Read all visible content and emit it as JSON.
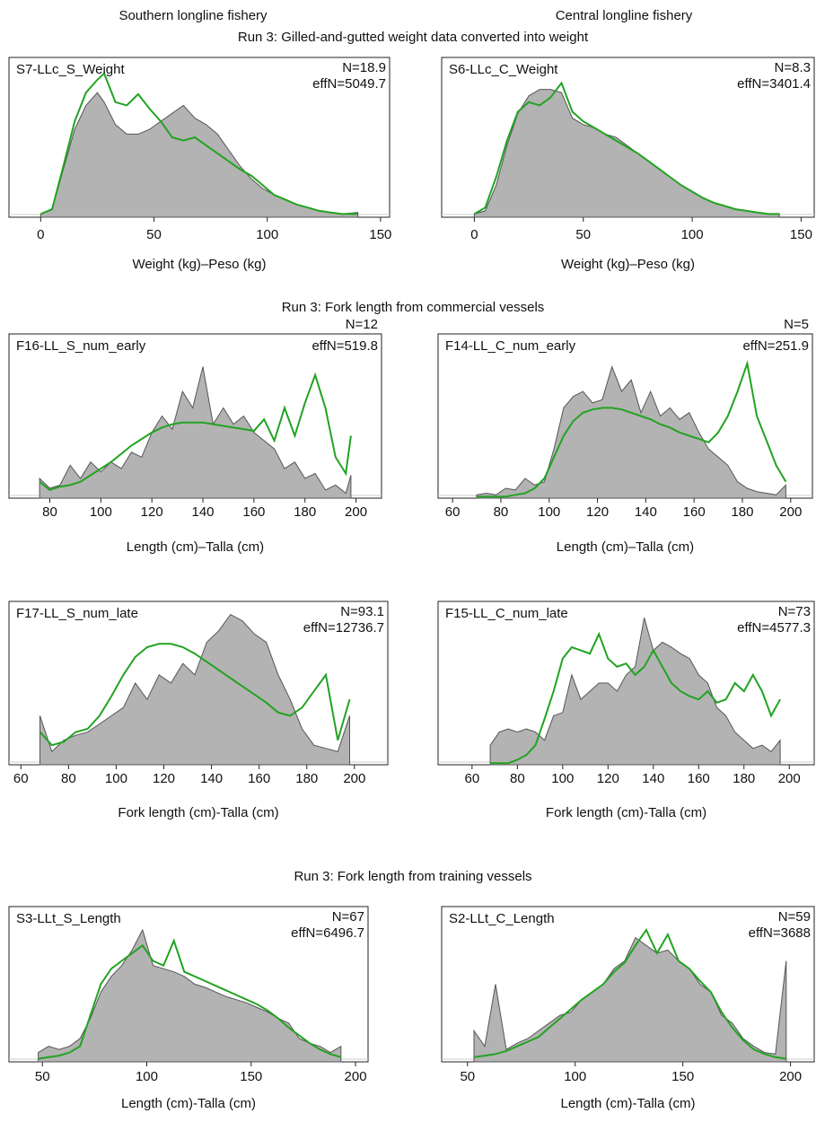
{
  "column_titles": [
    "Southern longline fishery",
    "Central longline fishery"
  ],
  "section_titles": [
    "Run 3: Gilled-and-gutted weight data converted into weight",
    "Run 3: Fork length from commercial vessels",
    "Run 3: Fork length from training vessels"
  ],
  "chart_data": [
    {
      "type": "area",
      "label": "S7-LLc_S_Weight",
      "n_label": "N=18.9",
      "effn_label": "effN=5049.7",
      "xlabel": "Weight (kg)–Peso (kg)",
      "xlim": [
        -14,
        154
      ],
      "xticks": [
        0,
        50,
        100,
        150
      ],
      "ylim": [
        0,
        1
      ],
      "x": [
        0,
        5,
        10,
        15,
        20,
        25,
        28,
        33,
        38,
        43,
        48,
        53,
        58,
        63,
        68,
        73,
        78,
        83,
        88,
        93,
        98,
        103,
        108,
        113,
        118,
        123,
        128,
        133,
        140
      ],
      "series": [
        {
          "color": "#b3b3b3",
          "fill": true,
          "values": [
            0.02,
            0.05,
            0.3,
            0.55,
            0.7,
            0.78,
            0.72,
            0.58,
            0.52,
            0.52,
            0.55,
            0.6,
            0.65,
            0.7,
            0.62,
            0.58,
            0.52,
            0.42,
            0.32,
            0.24,
            0.18,
            0.14,
            0.11,
            0.08,
            0.06,
            0.04,
            0.03,
            0.02,
            0.03
          ]
        },
        {
          "color": "#22a322",
          "fill": false,
          "values": [
            0.02,
            0.05,
            0.32,
            0.6,
            0.78,
            0.86,
            0.9,
            0.72,
            0.7,
            0.77,
            0.68,
            0.6,
            0.5,
            0.48,
            0.5,
            0.45,
            0.4,
            0.35,
            0.3,
            0.26,
            0.2,
            0.14,
            0.11,
            0.08,
            0.06,
            0.04,
            0.03,
            0.02,
            0.02
          ]
        }
      ]
    },
    {
      "type": "area",
      "label": "S6-LLc_C_Weight",
      "n_label": "N=8.3",
      "effn_label": "effN=3401.4",
      "xlabel": "Weight (kg)–Peso (kg)",
      "xlim": [
        -15,
        156
      ],
      "xticks": [
        0,
        50,
        100,
        150
      ],
      "ylim": [
        0,
        1
      ],
      "x": [
        0,
        5,
        10,
        15,
        20,
        25,
        30,
        35,
        40,
        45,
        50,
        55,
        60,
        65,
        70,
        75,
        80,
        85,
        90,
        95,
        100,
        105,
        110,
        115,
        120,
        125,
        130,
        135,
        140
      ],
      "series": [
        {
          "color": "#b3b3b3",
          "fill": true,
          "values": [
            0.02,
            0.04,
            0.2,
            0.45,
            0.65,
            0.76,
            0.8,
            0.8,
            0.78,
            0.62,
            0.58,
            0.56,
            0.52,
            0.5,
            0.45,
            0.4,
            0.35,
            0.3,
            0.25,
            0.2,
            0.16,
            0.12,
            0.09,
            0.07,
            0.05,
            0.04,
            0.03,
            0.02,
            0.02
          ]
        },
        {
          "color": "#22a322",
          "fill": false,
          "values": [
            0.02,
            0.06,
            0.25,
            0.48,
            0.66,
            0.72,
            0.7,
            0.75,
            0.84,
            0.66,
            0.6,
            0.56,
            0.52,
            0.48,
            0.44,
            0.4,
            0.35,
            0.3,
            0.25,
            0.2,
            0.16,
            0.12,
            0.09,
            0.07,
            0.05,
            0.04,
            0.03,
            0.02,
            0.02
          ]
        }
      ]
    },
    {
      "type": "area",
      "label": "F16-LL_S_num_early",
      "n_label": "N=12",
      "effn_label": "effN=519.8",
      "xlabel": "Length (cm)–Talla (cm)",
      "xlim": [
        64,
        210
      ],
      "xticks": [
        80,
        100,
        120,
        140,
        160,
        180,
        200
      ],
      "ylim": [
        0,
        1
      ],
      "x": [
        76,
        80,
        84,
        88,
        92,
        96,
        100,
        104,
        108,
        112,
        116,
        120,
        124,
        128,
        132,
        136,
        140,
        144,
        148,
        152,
        156,
        160,
        164,
        168,
        172,
        176,
        180,
        184,
        188,
        192,
        196,
        198
      ],
      "series": [
        {
          "color": "#b3b3b3",
          "fill": true,
          "values": [
            0.12,
            0.06,
            0.08,
            0.2,
            0.12,
            0.22,
            0.16,
            0.22,
            0.18,
            0.28,
            0.25,
            0.4,
            0.5,
            0.42,
            0.65,
            0.55,
            0.8,
            0.45,
            0.55,
            0.45,
            0.5,
            0.4,
            0.35,
            0.3,
            0.18,
            0.22,
            0.12,
            0.15,
            0.05,
            0.08,
            0.03,
            0.14
          ]
        },
        {
          "color": "#22a322",
          "fill": false,
          "values": [
            0.1,
            0.05,
            0.07,
            0.08,
            0.1,
            0.14,
            0.18,
            0.22,
            0.27,
            0.32,
            0.36,
            0.4,
            0.43,
            0.45,
            0.46,
            0.46,
            0.46,
            0.45,
            0.44,
            0.43,
            0.42,
            0.41,
            0.48,
            0.35,
            0.55,
            0.38,
            0.58,
            0.75,
            0.55,
            0.25,
            0.15,
            0.38
          ]
        }
      ]
    },
    {
      "type": "area",
      "label": "F14-LL_C_num_early",
      "n_label": "N=5",
      "effn_label": "effN=251.9",
      "xlabel": "Length (cm)–Talla (cm)",
      "xlim": [
        54,
        209
      ],
      "xticks": [
        60,
        80,
        100,
        120,
        140,
        160,
        180,
        200
      ],
      "ylim": [
        0,
        1
      ],
      "x": [
        70,
        74,
        78,
        82,
        86,
        90,
        94,
        98,
        102,
        106,
        110,
        114,
        118,
        122,
        126,
        130,
        134,
        138,
        142,
        146,
        150,
        154,
        158,
        162,
        166,
        170,
        174,
        178,
        182,
        186,
        190,
        194,
        198
      ],
      "series": [
        {
          "color": "#b3b3b3",
          "fill": true,
          "values": [
            0.02,
            0.03,
            0.02,
            0.06,
            0.05,
            0.12,
            0.08,
            0.1,
            0.3,
            0.55,
            0.62,
            0.65,
            0.58,
            0.6,
            0.8,
            0.65,
            0.72,
            0.52,
            0.65,
            0.5,
            0.55,
            0.48,
            0.52,
            0.4,
            0.3,
            0.25,
            0.2,
            0.1,
            0.06,
            0.04,
            0.03,
            0.02,
            0.08
          ]
        },
        {
          "color": "#22a322",
          "fill": false,
          "values": [
            0.01,
            0.01,
            0.01,
            0.01,
            0.02,
            0.03,
            0.06,
            0.12,
            0.25,
            0.38,
            0.47,
            0.52,
            0.54,
            0.55,
            0.55,
            0.54,
            0.52,
            0.5,
            0.48,
            0.45,
            0.43,
            0.4,
            0.38,
            0.36,
            0.34,
            0.4,
            0.5,
            0.65,
            0.82,
            0.5,
            0.35,
            0.2,
            0.1
          ]
        }
      ]
    },
    {
      "type": "area",
      "label": "F17-LL_S_num_late",
      "n_label": "N=93.1",
      "effn_label": "effN=12736.7",
      "xlabel": "Fork length (cm)-Talla (cm)",
      "xlim": [
        55,
        214
      ],
      "xticks": [
        60,
        80,
        100,
        120,
        140,
        160,
        180,
        200
      ],
      "ylim": [
        0,
        1
      ],
      "x": [
        68,
        73,
        78,
        83,
        88,
        93,
        98,
        103,
        108,
        113,
        118,
        123,
        128,
        133,
        138,
        143,
        148,
        153,
        158,
        163,
        168,
        173,
        178,
        183,
        188,
        193,
        198
      ],
      "series": [
        {
          "color": "#b3b3b3",
          "fill": true,
          "values": [
            0.3,
            0.08,
            0.15,
            0.18,
            0.2,
            0.25,
            0.3,
            0.35,
            0.5,
            0.4,
            0.55,
            0.5,
            0.62,
            0.55,
            0.75,
            0.82,
            0.92,
            0.88,
            0.8,
            0.75,
            0.55,
            0.4,
            0.22,
            0.12,
            0.1,
            0.08,
            0.3
          ]
        },
        {
          "color": "#22a322",
          "fill": false,
          "values": [
            0.2,
            0.12,
            0.14,
            0.2,
            0.22,
            0.3,
            0.42,
            0.55,
            0.66,
            0.72,
            0.74,
            0.74,
            0.72,
            0.68,
            0.63,
            0.58,
            0.53,
            0.48,
            0.43,
            0.38,
            0.32,
            0.3,
            0.35,
            0.45,
            0.55,
            0.15,
            0.4
          ]
        }
      ]
    },
    {
      "type": "area",
      "label": "F15-LL_C_num_late",
      "n_label": "N=73",
      "effn_label": "effN=4577.3",
      "xlabel": "Fork length (cm)-Talla (cm)",
      "xlim": [
        45,
        211
      ],
      "xticks": [
        60,
        80,
        100,
        120,
        140,
        160,
        180,
        200
      ],
      "ylim": [
        0,
        1
      ],
      "x": [
        68,
        72,
        76,
        80,
        84,
        88,
        92,
        96,
        100,
        104,
        108,
        112,
        116,
        120,
        124,
        128,
        132,
        136,
        140,
        144,
        148,
        152,
        156,
        160,
        164,
        168,
        172,
        176,
        180,
        184,
        188,
        192,
        196
      ],
      "series": [
        {
          "color": "#b3b3b3",
          "fill": true,
          "values": [
            0.12,
            0.2,
            0.22,
            0.2,
            0.22,
            0.2,
            0.15,
            0.3,
            0.32,
            0.55,
            0.4,
            0.45,
            0.5,
            0.5,
            0.45,
            0.55,
            0.6,
            0.9,
            0.7,
            0.75,
            0.72,
            0.68,
            0.65,
            0.55,
            0.5,
            0.35,
            0.3,
            0.2,
            0.15,
            0.1,
            0.12,
            0.08,
            0.15
          ]
        },
        {
          "color": "#22a322",
          "fill": false,
          "values": [
            0.01,
            0.01,
            0.01,
            0.03,
            0.06,
            0.12,
            0.28,
            0.45,
            0.65,
            0.72,
            0.7,
            0.68,
            0.8,
            0.65,
            0.6,
            0.62,
            0.55,
            0.6,
            0.7,
            0.6,
            0.5,
            0.45,
            0.42,
            0.4,
            0.45,
            0.38,
            0.4,
            0.5,
            0.45,
            0.55,
            0.45,
            0.3,
            0.4
          ]
        }
      ]
    },
    {
      "type": "area",
      "label": "S3-LLt_S_Length",
      "n_label": "N=67",
      "effn_label": "effN=6496.7",
      "xlabel": "Length (cm)-Talla (cm)",
      "xlim": [
        34,
        206
      ],
      "xticks": [
        50,
        100,
        150,
        200
      ],
      "ylim": [
        0,
        1
      ],
      "x": [
        48,
        53,
        58,
        63,
        68,
        73,
        78,
        83,
        88,
        93,
        98,
        103,
        108,
        113,
        118,
        123,
        128,
        133,
        138,
        143,
        148,
        153,
        158,
        163,
        168,
        173,
        178,
        183,
        188,
        193
      ],
      "series": [
        {
          "color": "#b3b3b3",
          "fill": true,
          "values": [
            0.06,
            0.1,
            0.08,
            0.1,
            0.15,
            0.28,
            0.45,
            0.55,
            0.62,
            0.72,
            0.85,
            0.62,
            0.6,
            0.58,
            0.55,
            0.5,
            0.48,
            0.45,
            0.42,
            0.4,
            0.38,
            0.35,
            0.32,
            0.28,
            0.25,
            0.15,
            0.12,
            0.1,
            0.06,
            0.1
          ]
        },
        {
          "color": "#22a322",
          "fill": false,
          "values": [
            0.02,
            0.03,
            0.04,
            0.06,
            0.1,
            0.3,
            0.5,
            0.6,
            0.65,
            0.7,
            0.75,
            0.65,
            0.62,
            0.78,
            0.58,
            0.55,
            0.52,
            0.49,
            0.46,
            0.43,
            0.4,
            0.37,
            0.33,
            0.28,
            0.22,
            0.17,
            0.12,
            0.08,
            0.05,
            0.03
          ]
        }
      ]
    },
    {
      "type": "area",
      "label": "S2-LLt_C_Length",
      "n_label": "N=59",
      "effn_label": "effN=3688",
      "xlabel": "Length (cm)-Talla (cm)",
      "xlim": [
        38,
        211
      ],
      "xticks": [
        50,
        100,
        150,
        200
      ],
      "ylim": [
        0,
        1
      ],
      "x": [
        53,
        58,
        63,
        68,
        73,
        78,
        83,
        88,
        93,
        98,
        103,
        108,
        113,
        118,
        123,
        128,
        133,
        138,
        143,
        148,
        153,
        158,
        163,
        168,
        173,
        178,
        183,
        188,
        193,
        198
      ],
      "series": [
        {
          "color": "#b3b3b3",
          "fill": true,
          "values": [
            0.2,
            0.1,
            0.5,
            0.08,
            0.12,
            0.15,
            0.2,
            0.25,
            0.3,
            0.32,
            0.4,
            0.45,
            0.5,
            0.6,
            0.65,
            0.8,
            0.75,
            0.7,
            0.72,
            0.65,
            0.6,
            0.5,
            0.45,
            0.3,
            0.25,
            0.15,
            0.1,
            0.06,
            0.05,
            0.65
          ]
        },
        {
          "color": "#22a322",
          "fill": false,
          "values": [
            0.03,
            0.04,
            0.05,
            0.07,
            0.1,
            0.13,
            0.16,
            0.22,
            0.28,
            0.34,
            0.4,
            0.45,
            0.5,
            0.58,
            0.64,
            0.75,
            0.85,
            0.7,
            0.82,
            0.65,
            0.6,
            0.52,
            0.45,
            0.32,
            0.22,
            0.14,
            0.08,
            0.05,
            0.03,
            0.02
          ]
        }
      ]
    }
  ]
}
